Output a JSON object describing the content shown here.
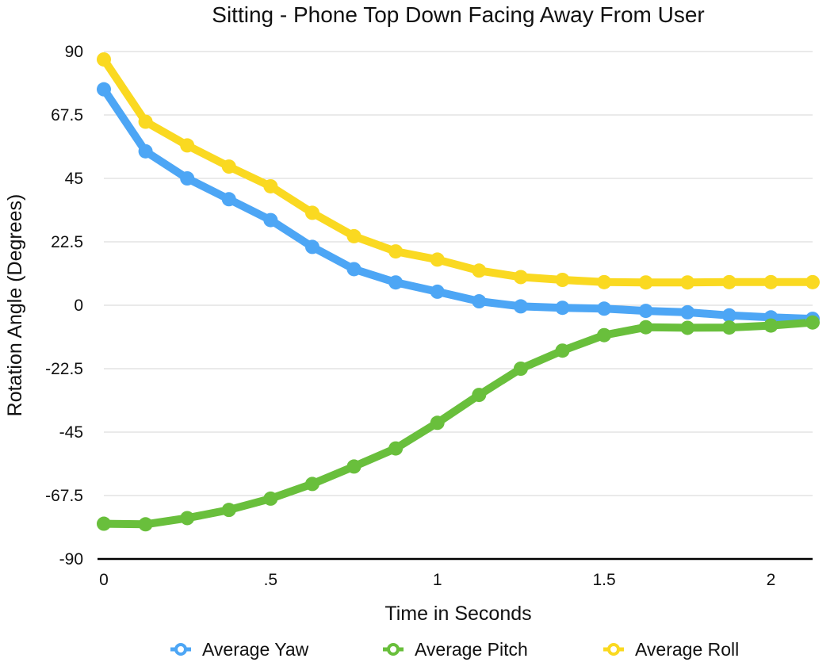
{
  "chart_data": {
    "type": "line",
    "title": "Sitting - Phone Top Down Facing Away From User",
    "xlabel": "Time in Seconds",
    "ylabel": "Rotation Angle (Degrees)",
    "xlim": [
      0,
      2.125
    ],
    "ylim": [
      -90,
      90
    ],
    "x_ticks": [
      0,
      0.5,
      1,
      1.5,
      2
    ],
    "x_tick_labels": [
      "0",
      ".5",
      "1",
      "1.5",
      "2"
    ],
    "y_ticks": [
      90,
      67.5,
      45,
      22.5,
      0,
      -22.5,
      -45,
      -67.5,
      -90
    ],
    "y_tick_labels": [
      "90",
      "67.5",
      "45",
      "22.5",
      "0",
      "-22.5",
      "-45",
      "-67.5",
      "-90"
    ],
    "grid": true,
    "legend_position": "bottom",
    "x": [
      0,
      0.125,
      0.25,
      0.375,
      0.5,
      0.625,
      0.75,
      0.875,
      1,
      1.125,
      1.25,
      1.375,
      1.5,
      1.625,
      1.75,
      1.875,
      2,
      2.125
    ],
    "series": [
      {
        "name": "Average Yaw",
        "color": "#4da6f5",
        "values": [
          76.6,
          54.6,
          45.0,
          37.6,
          30.2,
          20.7,
          12.8,
          8.1,
          4.8,
          1.4,
          -0.4,
          -0.9,
          -1.2,
          -2.0,
          -2.5,
          -3.6,
          -4.3,
          -4.8
        ]
      },
      {
        "name": "Average Pitch",
        "color": "#69bf3c",
        "values": [
          -77.5,
          -77.7,
          -75.5,
          -72.6,
          -68.6,
          -63.4,
          -57.2,
          -50.8,
          -41.7,
          -31.8,
          -22.5,
          -16.1,
          -10.6,
          -7.8,
          -8.0,
          -7.9,
          -7.2,
          -6.1
        ]
      },
      {
        "name": "Average Roll",
        "color": "#fad921",
        "values": [
          87.2,
          65.1,
          56.7,
          49.2,
          42.2,
          32.8,
          24.5,
          19.1,
          16.2,
          12.3,
          10.0,
          9.0,
          8.2,
          8.1,
          8.1,
          8.2,
          8.2,
          8.2
        ]
      }
    ]
  }
}
